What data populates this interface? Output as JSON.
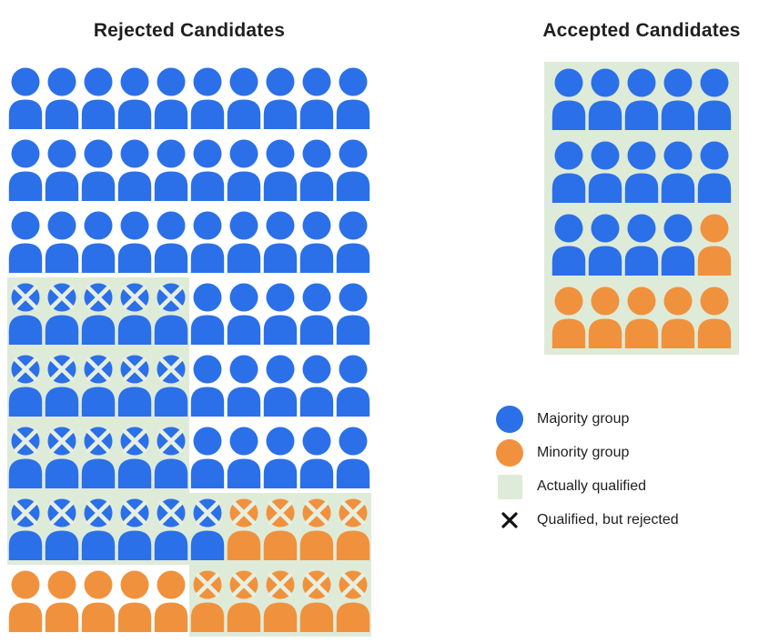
{
  "titles": {
    "rejected": "Rejected Candidates",
    "accepted": "Accepted Candidates"
  },
  "colors": {
    "majority_blue": "#2b70e8",
    "minority_orange": "#f0923d",
    "qualified_green": "#dfebd9",
    "figure_x_mark": "#e7efe1",
    "legend_x_mark": "#111111",
    "text": "#1f1f1f"
  },
  "cell_legend_note": "token: b=majority(blue), o=minority(orange), x=has qualified-but-rejected X mark, q=on actually-qualified green background",
  "rejected_grid": {
    "columns": 10,
    "rows": [
      [
        "b",
        "b",
        "b",
        "b",
        "b",
        "b",
        "b",
        "b",
        "b",
        "b"
      ],
      [
        "b",
        "b",
        "b",
        "b",
        "b",
        "b",
        "b",
        "b",
        "b",
        "b"
      ],
      [
        "b",
        "b",
        "b",
        "b",
        "b",
        "b",
        "b",
        "b",
        "b",
        "b"
      ],
      [
        "bxq",
        "bxq",
        "bxq",
        "bxq",
        "bxq",
        "b",
        "b",
        "b",
        "b",
        "b"
      ],
      [
        "bxq",
        "bxq",
        "bxq",
        "bxq",
        "bxq",
        "b",
        "b",
        "b",
        "b",
        "b"
      ],
      [
        "bxq",
        "bxq",
        "bxq",
        "bxq",
        "bxq",
        "b",
        "b",
        "b",
        "b",
        "b"
      ],
      [
        "bxq",
        "bxq",
        "bxq",
        "bxq",
        "bxq",
        "bxq",
        "oxq",
        "oxq",
        "oxq",
        "oxq"
      ],
      [
        "o",
        "o",
        "o",
        "o",
        "o",
        "oxq",
        "oxq",
        "oxq",
        "oxq",
        "oxq"
      ]
    ]
  },
  "accepted_grid": {
    "columns": 5,
    "rows": [
      [
        "bq",
        "bq",
        "bq",
        "bq",
        "bq"
      ],
      [
        "bq",
        "bq",
        "bq",
        "bq",
        "bq"
      ],
      [
        "bq",
        "bq",
        "bq",
        "bq",
        "oq"
      ],
      [
        "oq",
        "oq",
        "oq",
        "oq",
        "oq"
      ]
    ]
  },
  "legend": {
    "items": [
      {
        "key": "majority-group",
        "swatch": "circle-blue",
        "label": "Majority group"
      },
      {
        "key": "minority-group",
        "swatch": "circle-orange",
        "label": "Minority group"
      },
      {
        "key": "actually-qualified",
        "swatch": "square-green",
        "label": "Actually qualified"
      },
      {
        "key": "qualified-but-rejected",
        "swatch": "x-mark",
        "label": "Qualified, but rejected"
      }
    ]
  }
}
